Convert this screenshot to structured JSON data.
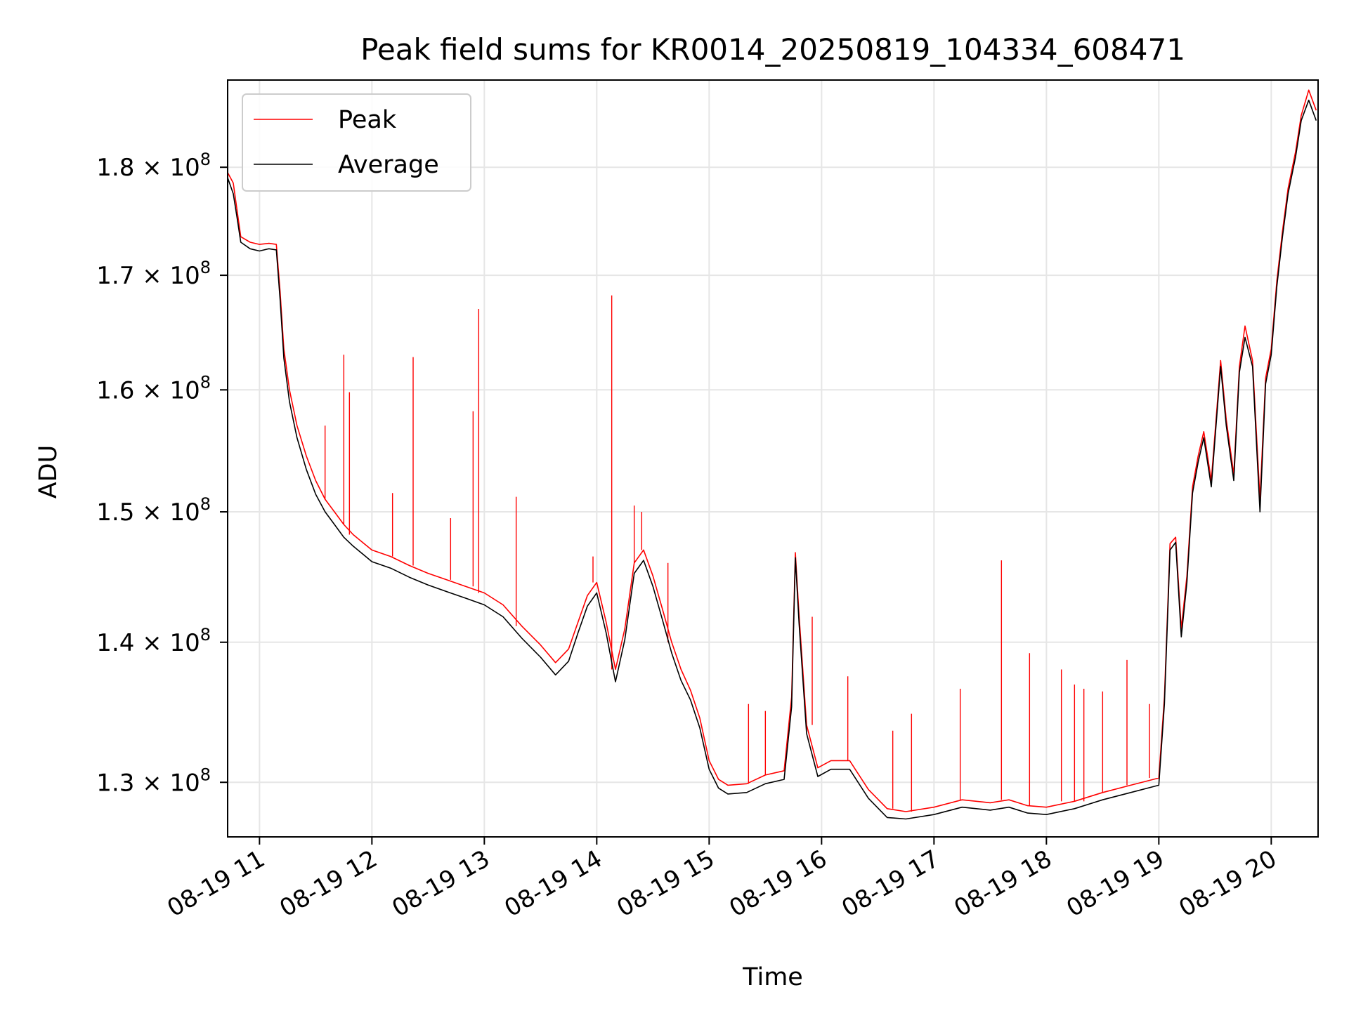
{
  "chart_data": {
    "type": "line",
    "title": "Peak field sums for KR0014_20250819_104334_608471",
    "xlabel": "Time",
    "ylabel": "ADU",
    "y_scale": "log",
    "xlim": [
      "08-19 10:43",
      "08-19 20:25"
    ],
    "ylim": [
      126300000,
      188500000
    ],
    "grid": true,
    "legend_position": "upper-left",
    "x_ticks": [
      {
        "value": "08-19 11:00",
        "label": "08-19 11"
      },
      {
        "value": "08-19 12:00",
        "label": "08-19 12"
      },
      {
        "value": "08-19 13:00",
        "label": "08-19 13"
      },
      {
        "value": "08-19 14:00",
        "label": "08-19 14"
      },
      {
        "value": "08-19 15:00",
        "label": "08-19 15"
      },
      {
        "value": "08-19 16:00",
        "label": "08-19 16"
      },
      {
        "value": "08-19 17:00",
        "label": "08-19 17"
      },
      {
        "value": "08-19 18:00",
        "label": "08-19 18"
      },
      {
        "value": "08-19 19:00",
        "label": "08-19 19"
      },
      {
        "value": "08-19 20:00",
        "label": "08-19 20"
      }
    ],
    "y_ticks": [
      {
        "value": 130000000,
        "mantissa": "1.3",
        "exponent": "8"
      },
      {
        "value": 140000000,
        "mantissa": "1.4",
        "exponent": "8"
      },
      {
        "value": 150000000,
        "mantissa": "1.5",
        "exponent": "8"
      },
      {
        "value": 160000000,
        "mantissa": "1.6",
        "exponent": "8"
      },
      {
        "value": 170000000,
        "mantissa": "1.7",
        "exponent": "8"
      },
      {
        "value": 180000000,
        "mantissa": "1.8",
        "exponent": "8"
      }
    ],
    "series": [
      {
        "name": "Peak",
        "color": "#ff0000",
        "points": [
          [
            "08-19 10:43",
            179500000
          ],
          [
            "08-19 10:46",
            178500000
          ],
          [
            "08-19 10:48",
            176000000
          ],
          [
            "08-19 10:50",
            173500000
          ],
          [
            "08-19 10:55",
            173000000
          ],
          [
            "08-19 11:00",
            172800000
          ],
          [
            "08-19 11:05",
            172900000
          ],
          [
            "08-19 11:09",
            172800000
          ],
          [
            "08-19 11:11",
            168500000
          ],
          [
            "08-19 11:13",
            163500000
          ],
          [
            "08-19 11:16",
            160000000
          ],
          [
            "08-19 11:20",
            157000000
          ],
          [
            "08-19 11:25",
            154500000
          ],
          [
            "08-19 11:30",
            152500000
          ],
          [
            "08-19 11:35",
            151000000
          ],
          [
            "08-19 11:40",
            150000000
          ],
          [
            "08-19 11:45",
            149000000
          ],
          [
            "08-19 11:50",
            148200000
          ],
          [
            "08-19 11:55",
            147600000
          ],
          [
            "08-19 12:00",
            147000000
          ],
          [
            "08-19 12:10",
            146500000
          ],
          [
            "08-19 12:20",
            145800000
          ],
          [
            "08-19 12:30",
            145200000
          ],
          [
            "08-19 12:40",
            144700000
          ],
          [
            "08-19 12:50",
            144200000
          ],
          [
            "08-19 13:00",
            143700000
          ],
          [
            "08-19 13:10",
            142800000
          ],
          [
            "08-19 13:20",
            141200000
          ],
          [
            "08-19 13:30",
            139800000
          ],
          [
            "08-19 13:38",
            138500000
          ],
          [
            "08-19 13:45",
            139500000
          ],
          [
            "08-19 13:50",
            141500000
          ],
          [
            "08-19 13:55",
            143500000
          ],
          [
            "08-19 14:00",
            144500000
          ],
          [
            "08-19 14:05",
            141500000
          ],
          [
            "08-19 14:10",
            138000000
          ],
          [
            "08-19 14:15",
            141000000
          ],
          [
            "08-19 14:20",
            146000000
          ],
          [
            "08-19 14:25",
            147000000
          ],
          [
            "08-19 14:30",
            145000000
          ],
          [
            "08-19 14:35",
            142500000
          ],
          [
            "08-19 14:40",
            140000000
          ],
          [
            "08-19 14:45",
            138000000
          ],
          [
            "08-19 14:50",
            136500000
          ],
          [
            "08-19 14:55",
            134500000
          ],
          [
            "08-19 15:00",
            131500000
          ],
          [
            "08-19 15:05",
            130200000
          ],
          [
            "08-19 15:10",
            129800000
          ],
          [
            "08-19 15:20",
            129900000
          ],
          [
            "08-19 15:30",
            130500000
          ],
          [
            "08-19 15:40",
            130800000
          ],
          [
            "08-19 15:44",
            136000000
          ],
          [
            "08-19 15:46",
            146800000
          ],
          [
            "08-19 15:48",
            142000000
          ],
          [
            "08-19 15:52",
            134000000
          ],
          [
            "08-19 15:58",
            131000000
          ],
          [
            "08-19 16:05",
            131500000
          ],
          [
            "08-19 16:15",
            131500000
          ],
          [
            "08-19 16:25",
            129500000
          ],
          [
            "08-19 16:35",
            128200000
          ],
          [
            "08-19 16:45",
            128000000
          ],
          [
            "08-19 17:00",
            128300000
          ],
          [
            "08-19 17:15",
            128800000
          ],
          [
            "08-19 17:30",
            128600000
          ],
          [
            "08-19 17:40",
            128800000
          ],
          [
            "08-19 17:50",
            128400000
          ],
          [
            "08-19 18:00",
            128300000
          ],
          [
            "08-19 18:15",
            128700000
          ],
          [
            "08-19 18:30",
            129300000
          ],
          [
            "08-19 18:45",
            129800000
          ],
          [
            "08-19 19:00",
            130300000
          ],
          [
            "08-19 19:03",
            136000000
          ],
          [
            "08-19 19:06",
            147500000
          ],
          [
            "08-19 19:09",
            148000000
          ],
          [
            "08-19 19:12",
            141000000
          ],
          [
            "08-19 19:15",
            145000000
          ],
          [
            "08-19 19:18",
            152000000
          ],
          [
            "08-19 19:21",
            154500000
          ],
          [
            "08-19 19:24",
            156500000
          ],
          [
            "08-19 19:28",
            152500000
          ],
          [
            "08-19 19:33",
            162500000
          ],
          [
            "08-19 19:36",
            157500000
          ],
          [
            "08-19 19:40",
            153000000
          ],
          [
            "08-19 19:43",
            162000000
          ],
          [
            "08-19 19:46",
            165500000
          ],
          [
            "08-19 19:50",
            162500000
          ],
          [
            "08-19 19:54",
            151000000
          ],
          [
            "08-19 19:57",
            161000000
          ],
          [
            "08-19 20:00",
            163500000
          ],
          [
            "08-19 20:03",
            169500000
          ],
          [
            "08-19 20:06",
            174000000
          ],
          [
            "08-19 20:09",
            178000000
          ],
          [
            "08-19 20:13",
            181500000
          ],
          [
            "08-19 20:16",
            185000000
          ],
          [
            "08-19 20:20",
            187500000
          ],
          [
            "08-19 20:24",
            185500000
          ]
        ],
        "spikes": [
          [
            "08-19 11:35",
            157000000
          ],
          [
            "08-19 11:45",
            163000000
          ],
          [
            "08-19 11:48",
            159800000
          ],
          [
            "08-19 12:11",
            151500000
          ],
          [
            "08-19 12:22",
            162800000
          ],
          [
            "08-19 12:42",
            149500000
          ],
          [
            "08-19 12:54",
            158200000
          ],
          [
            "08-19 12:57",
            167000000
          ],
          [
            "08-19 13:17",
            151200000
          ],
          [
            "08-19 13:58",
            146500000
          ],
          [
            "08-19 14:08",
            168200000
          ],
          [
            "08-19 14:20",
            150500000
          ],
          [
            "08-19 14:24",
            150000000
          ],
          [
            "08-19 14:38",
            146000000
          ],
          [
            "08-19 15:21",
            135500000
          ],
          [
            "08-19 15:30",
            135000000
          ],
          [
            "08-19 15:55",
            141900000
          ],
          [
            "08-19 16:14",
            137500000
          ],
          [
            "08-19 16:38",
            133600000
          ],
          [
            "08-19 16:48",
            134800000
          ],
          [
            "08-19 17:14",
            136600000
          ],
          [
            "08-19 17:36",
            146200000
          ],
          [
            "08-19 17:51",
            139200000
          ],
          [
            "08-19 18:08",
            138000000
          ],
          [
            "08-19 18:15",
            136900000
          ],
          [
            "08-19 18:20",
            136600000
          ],
          [
            "08-19 18:30",
            136400000
          ],
          [
            "08-19 18:43",
            138700000
          ],
          [
            "08-19 18:55",
            135500000
          ]
        ]
      },
      {
        "name": "Average",
        "color": "#000000",
        "points": [
          [
            "08-19 10:43",
            179000000
          ],
          [
            "08-19 10:46",
            177500000
          ],
          [
            "08-19 10:48",
            175300000
          ],
          [
            "08-19 10:50",
            173000000
          ],
          [
            "08-19 10:55",
            172400000
          ],
          [
            "08-19 11:00",
            172200000
          ],
          [
            "08-19 11:05",
            172400000
          ],
          [
            "08-19 11:09",
            172300000
          ],
          [
            "08-19 11:11",
            167800000
          ],
          [
            "08-19 11:13",
            162700000
          ],
          [
            "08-19 11:16",
            159000000
          ],
          [
            "08-19 11:20",
            156000000
          ],
          [
            "08-19 11:25",
            153400000
          ],
          [
            "08-19 11:30",
            151400000
          ],
          [
            "08-19 11:35",
            150000000
          ],
          [
            "08-19 11:40",
            149000000
          ],
          [
            "08-19 11:45",
            148000000
          ],
          [
            "08-19 11:50",
            147300000
          ],
          [
            "08-19 11:55",
            146700000
          ],
          [
            "08-19 12:00",
            146100000
          ],
          [
            "08-19 12:10",
            145600000
          ],
          [
            "08-19 12:20",
            144900000
          ],
          [
            "08-19 12:30",
            144300000
          ],
          [
            "08-19 12:40",
            143800000
          ],
          [
            "08-19 12:50",
            143300000
          ],
          [
            "08-19 13:00",
            142800000
          ],
          [
            "08-19 13:10",
            141900000
          ],
          [
            "08-19 13:20",
            140300000
          ],
          [
            "08-19 13:30",
            138900000
          ],
          [
            "08-19 13:38",
            137600000
          ],
          [
            "08-19 13:45",
            138600000
          ],
          [
            "08-19 13:50",
            140700000
          ],
          [
            "08-19 13:55",
            142700000
          ],
          [
            "08-19 14:00",
            143700000
          ],
          [
            "08-19 14:05",
            140700000
          ],
          [
            "08-19 14:10",
            137100000
          ],
          [
            "08-19 14:15",
            140200000
          ],
          [
            "08-19 14:20",
            145200000
          ],
          [
            "08-19 14:25",
            146200000
          ],
          [
            "08-19 14:30",
            144200000
          ],
          [
            "08-19 14:35",
            141700000
          ],
          [
            "08-19 14:40",
            139200000
          ],
          [
            "08-19 14:45",
            137200000
          ],
          [
            "08-19 14:50",
            135800000
          ],
          [
            "08-19 14:55",
            133800000
          ],
          [
            "08-19 15:00",
            130900000
          ],
          [
            "08-19 15:05",
            129600000
          ],
          [
            "08-19 15:10",
            129200000
          ],
          [
            "08-19 15:20",
            129300000
          ],
          [
            "08-19 15:30",
            129900000
          ],
          [
            "08-19 15:40",
            130200000
          ],
          [
            "08-19 15:44",
            135300000
          ],
          [
            "08-19 15:46",
            146400000
          ],
          [
            "08-19 15:48",
            141400000
          ],
          [
            "08-19 15:52",
            133400000
          ],
          [
            "08-19 15:58",
            130400000
          ],
          [
            "08-19 16:05",
            130900000
          ],
          [
            "08-19 16:15",
            130900000
          ],
          [
            "08-19 16:25",
            128900000
          ],
          [
            "08-19 16:35",
            127600000
          ],
          [
            "08-19 16:45",
            127500000
          ],
          [
            "08-19 17:00",
            127800000
          ],
          [
            "08-19 17:15",
            128300000
          ],
          [
            "08-19 17:30",
            128100000
          ],
          [
            "08-19 17:40",
            128300000
          ],
          [
            "08-19 17:50",
            127900000
          ],
          [
            "08-19 18:00",
            127800000
          ],
          [
            "08-19 18:15",
            128200000
          ],
          [
            "08-19 18:30",
            128800000
          ],
          [
            "08-19 18:45",
            129300000
          ],
          [
            "08-19 19:00",
            129800000
          ],
          [
            "08-19 19:03",
            135500000
          ],
          [
            "08-19 19:06",
            147000000
          ],
          [
            "08-19 19:09",
            147600000
          ],
          [
            "08-19 19:12",
            140400000
          ],
          [
            "08-19 19:15",
            144500000
          ],
          [
            "08-19 19:18",
            151500000
          ],
          [
            "08-19 19:21",
            154000000
          ],
          [
            "08-19 19:24",
            156000000
          ],
          [
            "08-19 19:28",
            152000000
          ],
          [
            "08-19 19:33",
            162000000
          ],
          [
            "08-19 19:36",
            157000000
          ],
          [
            "08-19 19:40",
            152500000
          ],
          [
            "08-19 19:43",
            161500000
          ],
          [
            "08-19 19:46",
            164500000
          ],
          [
            "08-19 19:50",
            162000000
          ],
          [
            "08-19 19:54",
            150000000
          ],
          [
            "08-19 19:57",
            160500000
          ],
          [
            "08-19 20:00",
            163000000
          ],
          [
            "08-19 20:03",
            169000000
          ],
          [
            "08-19 20:06",
            173500000
          ],
          [
            "08-19 20:09",
            177500000
          ],
          [
            "08-19 20:13",
            181000000
          ],
          [
            "08-19 20:16",
            184500000
          ],
          [
            "08-19 20:20",
            186500000
          ],
          [
            "08-19 20:24",
            184500000
          ]
        ]
      }
    ]
  }
}
